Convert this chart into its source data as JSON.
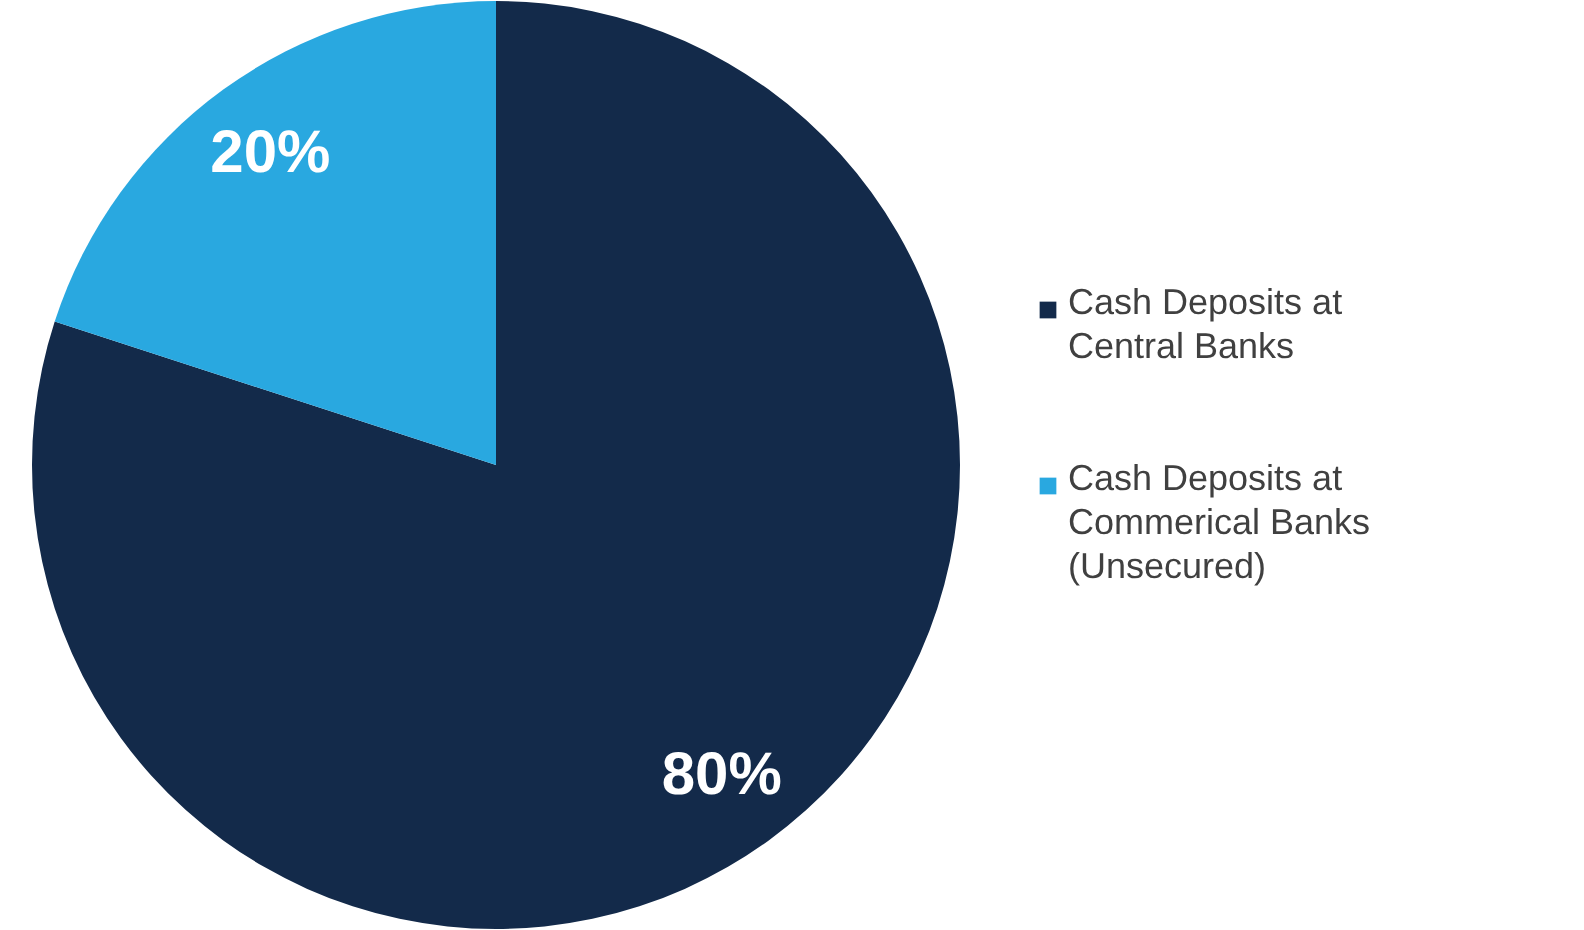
{
  "chart_data": {
    "type": "pie",
    "categories": [
      "Cash Deposits at Central Banks",
      "Cash Deposits at Commerical Banks (Unsecured)"
    ],
    "values": [
      80,
      20
    ],
    "colors": [
      "#132a4a",
      "#29a8e0"
    ],
    "value_labels": [
      "80%",
      "20%"
    ],
    "legend": "right"
  }
}
